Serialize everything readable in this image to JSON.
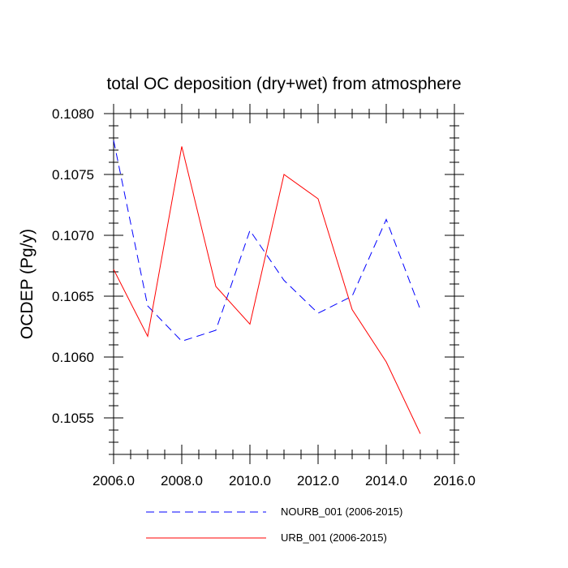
{
  "chart_data": {
    "type": "line",
    "title": "total OC deposition (dry+wet) from atmosphere",
    "xlabel": "",
    "ylabel": "OCDEP  (Pg/y)",
    "xlim": [
      2006.0,
      2016.0
    ],
    "ylim": [
      0.1052,
      0.108
    ],
    "x_ticks": [
      2006.0,
      2008.0,
      2010.0,
      2012.0,
      2014.0,
      2016.0
    ],
    "x_tick_labels": [
      "2006.0",
      "2008.0",
      "2010.0",
      "2012.0",
      "2014.0",
      "2016.0"
    ],
    "y_ticks": [
      0.1055,
      0.106,
      0.1065,
      0.107,
      0.1075,
      0.108
    ],
    "y_tick_labels": [
      "0.1055",
      "0.1060",
      "0.1065",
      "0.1070",
      "0.1075",
      "0.1080"
    ],
    "grid": false,
    "legend_position": "bottom",
    "x": [
      2006,
      2007,
      2008,
      2009,
      2010,
      2011,
      2012,
      2013,
      2014,
      2015
    ],
    "series": [
      {
        "name": "NOURB_001 (2006-2015)",
        "style": "dashed",
        "color": "#0000ff",
        "values": [
          0.10778,
          0.10642,
          0.10613,
          0.10622,
          0.10704,
          0.10663,
          0.10636,
          0.1065,
          0.10713,
          0.10639
        ]
      },
      {
        "name": "URB_001 (2006-2015)",
        "style": "solid",
        "color": "#ff0000",
        "values": [
          0.10672,
          0.10617,
          0.10773,
          0.10658,
          0.10627,
          0.1075,
          0.1073,
          0.10639,
          0.10596,
          0.10537
        ]
      }
    ]
  }
}
